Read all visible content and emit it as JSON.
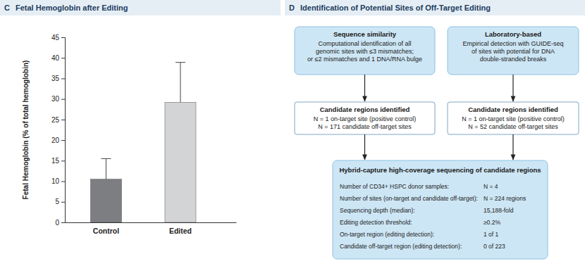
{
  "chart_data": {
    "type": "bar",
    "panel": "C",
    "title": "Fetal Hemoglobin after Editing",
    "y_label": "Fetal Hemoglobin (% of total hemoglobin)",
    "categories": [
      "Control",
      "Edited"
    ],
    "values": [
      10.5,
      29.2
    ],
    "errors": [
      5.0,
      9.7
    ],
    "colors": [
      "#7d7e82",
      "#d3d4d6"
    ],
    "ylim": [
      0,
      45
    ],
    "yticks": [
      0,
      5,
      10,
      15,
      20,
      25,
      30,
      35,
      40,
      45
    ]
  },
  "diagram": {
    "panel": "D",
    "title": "Identification of Potential Sites of Off-Target Editing",
    "nodes": [
      {
        "title": "Sequence similarity",
        "lines": [
          "Computational identification of all",
          "genomic sites with ≤3 mismatches;",
          "or ≤2 mismatches and 1 DNA/RNA bulge"
        ]
      },
      {
        "title": "Laboratory-based",
        "lines": [
          "Empirical detection with GUIDE-seq",
          "of sites with potential for DNA",
          "double-stranded breaks"
        ]
      },
      {
        "title": "Candidate regions identified",
        "lines": [
          "N = 1 on-target site (positive control)",
          "N = 171 candidate off-target sites"
        ]
      },
      {
        "title": "Candidate regions identified",
        "lines": [
          "N = 1 on-target site (positive control)",
          "N = 52 candidate off-target sites"
        ]
      }
    ],
    "summary": {
      "title": "Hybrid-capture high-coverage sequencing of candidate regions",
      "rows": [
        {
          "label": "Number of CD34+ HSPC donor samples:",
          "value": "N = 4"
        },
        {
          "label": "Number of sites (on-target and candidate off-target):",
          "value": "N = 224 regions"
        },
        {
          "label": "Sequencing depth (median):",
          "value": "15,188-fold"
        },
        {
          "label": "Editing detection threshold:",
          "value": "≥0.2%"
        },
        {
          "label": "On-target region (editing detection):",
          "value": "1 of 1"
        },
        {
          "label": "Candidate off-target region (editing detection):",
          "value": "0 of 223"
        }
      ]
    }
  }
}
